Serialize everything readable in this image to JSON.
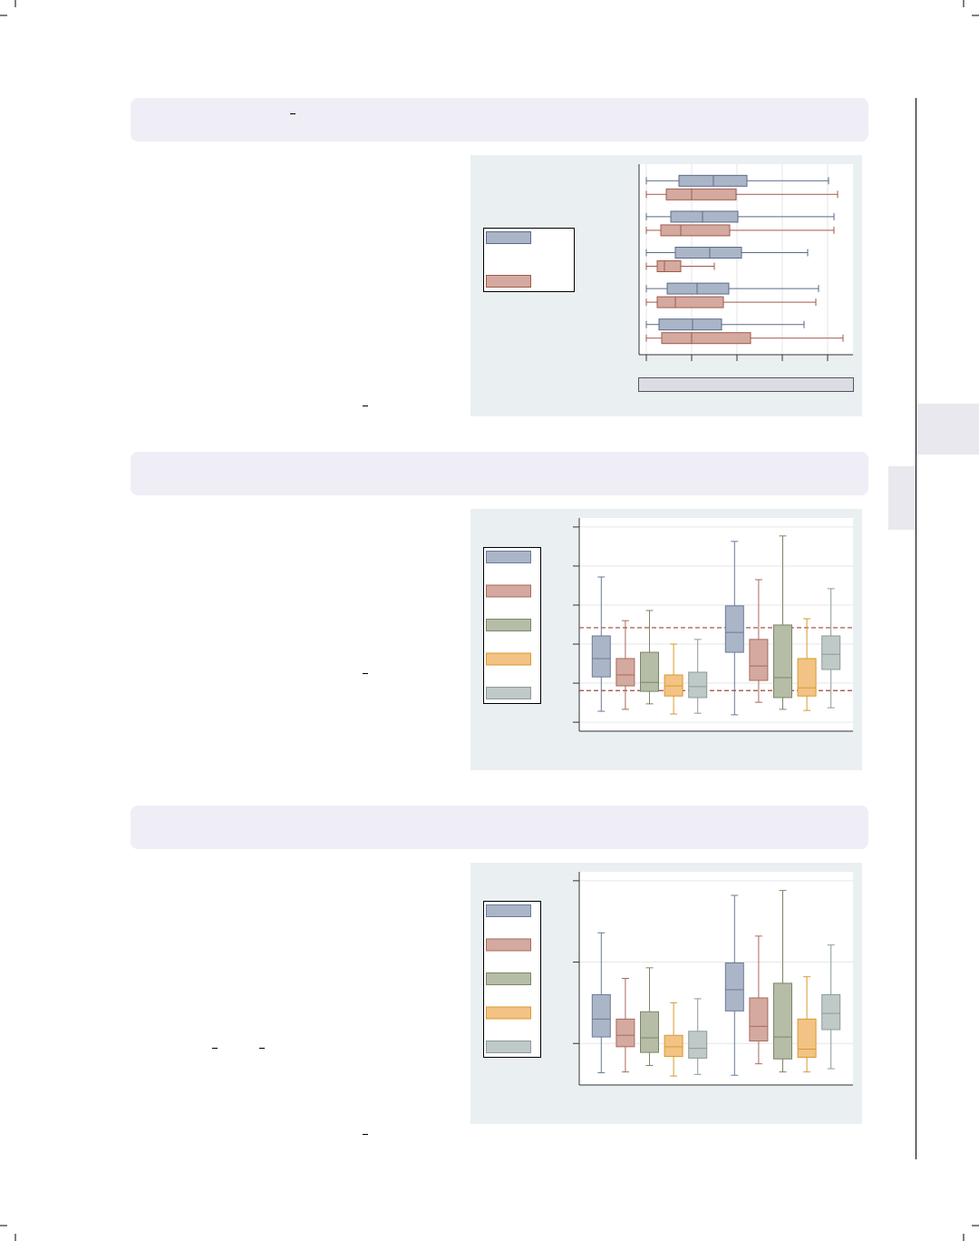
{
  "chart_data": [
    {
      "type": "box",
      "orientation": "horizontal",
      "grid": true,
      "xlim": [
        -0.16,
        4.56
      ],
      "xticks": [
        0,
        1,
        2,
        3,
        4
      ],
      "series": [
        {
          "color": "#abb5c8",
          "edgecolor": "#5a6a8a",
          "min": [
            0,
            0,
            0,
            0,
            0
          ],
          "q1": [
            0.72,
            0.54,
            0.64,
            0.46,
            0.28
          ],
          "median": [
            1.48,
            1.24,
            1.4,
            1.12,
            1.02
          ],
          "q3": [
            2.22,
            2.02,
            2.1,
            1.82,
            1.66
          ],
          "max": [
            4.02,
            4.14,
            3.56,
            3.8,
            3.48
          ]
        },
        {
          "color": "#d4a9a0",
          "edgecolor": "#a05a4a",
          "min": [
            0,
            0,
            0,
            0,
            0
          ],
          "q1": [
            0.44,
            0.32,
            0.24,
            0.24,
            0.34
          ],
          "median": [
            1.0,
            0.76,
            0.4,
            0.64,
            1.0
          ],
          "q3": [
            1.98,
            1.84,
            0.76,
            1.7,
            2.3
          ],
          "max": [
            4.22,
            4.14,
            1.5,
            3.74,
            4.34
          ]
        }
      ]
    },
    {
      "type": "box",
      "orientation": "vertical",
      "grid": true,
      "ylim": [
        -0.23,
        5.23
      ],
      "yticks": [
        0,
        1,
        2,
        3,
        4,
        5
      ],
      "reflines": [
        2.42,
        0.81
      ],
      "refline_color": "#a0443a",
      "series": [
        {
          "color": "#abb5c8",
          "edgecolor": "#6b7a99",
          "min": [
            0.28,
            0.19
          ],
          "q1": [
            1.16,
            1.79
          ],
          "median": [
            1.63,
            2.3
          ],
          "q3": [
            2.21,
            2.98
          ],
          "max": [
            3.72,
            4.63
          ]
        },
        {
          "color": "#d4a9a0",
          "edgecolor": "#a86a5c",
          "min": [
            0.33,
            0.51
          ],
          "q1": [
            0.93,
            1.07
          ],
          "median": [
            1.21,
            1.44
          ],
          "q3": [
            1.63,
            2.12
          ],
          "max": [
            2.6,
            3.65
          ]
        },
        {
          "color": "#b6bda6",
          "edgecolor": "#7c8568",
          "min": [
            0.47,
            0.33
          ],
          "q1": [
            0.79,
            0.63
          ],
          "median": [
            1.02,
            1.14
          ],
          "q3": [
            1.79,
            2.49
          ],
          "max": [
            2.86,
            4.77
          ]
        },
        {
          "color": "#f2c384",
          "edgecolor": "#d89a30",
          "min": [
            0.21,
            0.3
          ],
          "q1": [
            0.67,
            0.67
          ],
          "median": [
            0.93,
            0.88
          ],
          "q3": [
            1.21,
            1.63
          ],
          "max": [
            2.0,
            2.65
          ]
        },
        {
          "color": "#bfc9c8",
          "edgecolor": "#8e9a99",
          "min": [
            0.23,
            0.37
          ],
          "q1": [
            0.63,
            1.35
          ],
          "median": [
            0.91,
            1.74
          ],
          "q3": [
            1.28,
            2.21
          ],
          "max": [
            2.12,
            3.42
          ]
        }
      ]
    },
    {
      "type": "box",
      "orientation": "vertical",
      "grid": true,
      "ylim": [
        -0.51,
        2.11
      ],
      "yticks": [
        0,
        1,
        2
      ],
      "series": [
        {
          "color": "#abb5c8",
          "edgecolor": "#6b7a99",
          "min": [
            -0.36,
            -0.39
          ],
          "q1": [
            0.08,
            0.4
          ],
          "median": [
            0.3,
            0.66
          ],
          "q3": [
            0.6,
            0.99
          ],
          "max": [
            1.36,
            1.82
          ]
        },
        {
          "color": "#d4a9a0",
          "edgecolor": "#a86a5c",
          "min": [
            -0.35,
            -0.25
          ],
          "q1": [
            -0.04,
            0.03
          ],
          "median": [
            0.1,
            0.21
          ],
          "q3": [
            0.3,
            0.56
          ],
          "max": [
            0.8,
            1.32
          ]
        },
        {
          "color": "#b6bda6",
          "edgecolor": "#7c8568",
          "min": [
            -0.27,
            -0.35
          ],
          "q1": [
            -0.11,
            -0.19
          ],
          "median": [
            0.07,
            0.08
          ],
          "q3": [
            0.39,
            0.74
          ],
          "max": [
            0.93,
            1.88
          ]
        },
        {
          "color": "#f2c384",
          "edgecolor": "#d89a30",
          "min": [
            -0.4,
            -0.35
          ],
          "q1": [
            -0.16,
            -0.17
          ],
          "median": [
            -0.04,
            -0.07
          ],
          "q3": [
            0.1,
            0.3
          ],
          "max": [
            0.5,
            0.82
          ]
        },
        {
          "color": "#bfc9c8",
          "edgecolor": "#8e9a99",
          "min": [
            -0.38,
            -0.31
          ],
          "q1": [
            -0.18,
            0.17
          ],
          "median": [
            -0.06,
            0.37
          ],
          "q3": [
            0.15,
            0.6
          ],
          "max": [
            0.55,
            1.21
          ]
        }
      ]
    }
  ]
}
